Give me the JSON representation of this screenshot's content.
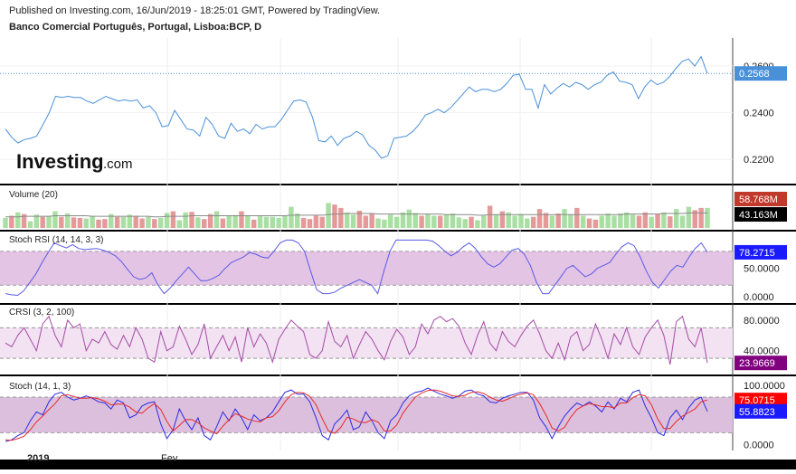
{
  "header": {
    "published": "Published on Investing.com, 16/Jun/2019 - 18:25:01 GMT, Powered by TradingView.",
    "symbol": "Banco Comercial Português, Portugal, Lisboa:BCP, D"
  },
  "watermark": {
    "brand": "Investing",
    "suffix": ".com"
  },
  "x_axis": {
    "labels": [
      "2019",
      "Fev"
    ]
  },
  "colors": {
    "price": "#4a90d9",
    "price_badge": "#4a90d9",
    "vol_up": "#a9dfa3",
    "vol_down": "#e59a9a",
    "vol_ma": "#8a8a8a",
    "vol_badge": "#c0392b",
    "vol_ma_badge": "#000000",
    "rsi_line": "#5a5ae6",
    "rsi_band": "#e4c4e4",
    "rsi_badge": "#1a1aff",
    "crsi_line": "#a64ca6",
    "crsi_band": "#f2e2f2",
    "crsi_badge": "#800080",
    "stoch_k": "#2b2be6",
    "stoch_d": "#e62b2b",
    "stoch_band": "#dcbfdc",
    "stoch_k_badge": "#1a1aff",
    "stoch_d_badge": "#ff0000"
  },
  "chart_data": [
    {
      "type": "line",
      "title": "Banco Comercial Português, Portugal, Lisboa:BCP, D",
      "ylim": [
        0.21,
        0.272
      ],
      "yticks": [
        "0.2200",
        "0.2400",
        "0.2600"
      ],
      "last_label": "0.2568",
      "series": [
        {
          "values": [
            0.233,
            0.2295,
            0.227,
            0.2285,
            0.229,
            0.23,
            0.235,
            0.24,
            0.247,
            0.2465,
            0.247,
            0.2465,
            0.2465,
            0.245,
            0.244,
            0.2455,
            0.247,
            0.246,
            0.245,
            0.2455,
            0.245,
            0.2455,
            0.242,
            0.243,
            0.24,
            0.234,
            0.2345,
            0.241,
            0.237,
            0.233,
            0.2325,
            0.23,
            0.238,
            0.235,
            0.23,
            0.229,
            0.2355,
            0.232,
            0.233,
            0.231,
            0.235,
            0.233,
            0.234,
            0.234,
            0.237,
            0.241,
            0.245,
            0.2455,
            0.2445,
            0.238,
            0.228,
            0.2275,
            0.23,
            0.226,
            0.229,
            0.23,
            0.232,
            0.2305,
            0.226,
            0.224,
            0.2205,
            0.2215,
            0.229,
            0.2295,
            0.23,
            0.232,
            0.235,
            0.239,
            0.24,
            0.2415,
            0.24,
            0.242,
            0.245,
            0.248,
            0.251,
            0.249,
            0.25,
            0.25,
            0.249,
            0.25,
            0.2525,
            0.256,
            0.2565,
            0.25,
            0.25,
            0.242,
            0.252,
            0.248,
            0.2505,
            0.2525,
            0.251,
            0.253,
            0.252,
            0.25,
            0.252,
            0.253,
            0.256,
            0.2575,
            0.2535,
            0.253,
            0.252,
            0.246,
            0.251,
            0.254,
            0.252,
            0.253,
            0.2555,
            0.259,
            0.262,
            0.263,
            0.26,
            0.264,
            0.2568
          ]
        }
      ]
    },
    {
      "type": "bar",
      "title": "Volume (20)",
      "last_label": "58.768M",
      "ma_label": "43.163M",
      "ylim": [
        0,
        70
      ],
      "series": [
        {
          "name": "volume",
          "values": [
            18,
            22,
            28,
            25,
            12,
            24,
            20,
            22,
            30,
            20,
            26,
            19,
            18,
            17,
            22,
            15,
            16,
            25,
            20,
            20,
            24,
            22,
            17,
            20,
            16,
            18,
            27,
            30,
            14,
            28,
            29,
            19,
            16,
            25,
            30,
            17,
            22,
            23,
            30,
            23,
            15,
            21,
            20,
            20,
            18,
            22,
            38,
            26,
            18,
            16,
            22,
            20,
            45,
            42,
            36,
            28,
            24,
            31,
            22,
            26,
            17,
            15,
            24,
            20,
            28,
            33,
            27,
            22,
            25,
            22,
            22,
            24,
            26,
            19,
            16,
            20,
            14,
            22,
            40,
            24,
            30,
            28,
            22,
            25,
            17,
            20,
            34,
            27,
            22,
            26,
            34,
            24,
            36,
            22,
            17,
            15,
            22,
            26,
            22,
            26,
            28,
            24,
            22,
            28,
            20,
            25,
            28,
            21,
            34,
            22,
            38,
            32,
            36,
            36
          ]
        },
        {
          "name": "volume_ma",
          "values": [
            20,
            20,
            20,
            21,
            21,
            21,
            21,
            21,
            22,
            22,
            22,
            22,
            22,
            22,
            21,
            21,
            21,
            21,
            21,
            21,
            21,
            21,
            21,
            21,
            20,
            20,
            21,
            21,
            21,
            21,
            22,
            22,
            22,
            22,
            22,
            22,
            22,
            22,
            22,
            22,
            22,
            22,
            22,
            22,
            22,
            22,
            23,
            23,
            23,
            23,
            23,
            23,
            24,
            25,
            25,
            26,
            26,
            26,
            26,
            26,
            25,
            25,
            25,
            25,
            25,
            25,
            25,
            25,
            25,
            25,
            25,
            24,
            24,
            24,
            24,
            24,
            23,
            23,
            24,
            24,
            24,
            24,
            24,
            24,
            24,
            24,
            24,
            24,
            24,
            24,
            24,
            24,
            24,
            24,
            24,
            24,
            24,
            24,
            24,
            24,
            25,
            25,
            25,
            25,
            25,
            25,
            26,
            26,
            26,
            26,
            27,
            27,
            27,
            27
          ]
        }
      ],
      "up_down": "1,0,1,0,1,1,0,1,1,0,1,0,0,1,1,0,0,1,0,1,1,0,0,1,0,1,1,0,1,1,0,1,0,0,1,0,1,1,0,1,0,1,1,1,1,1,1,1,0,0,0,0,1,0,0,1,1,0,0,0,1,1,1,1,1,1,1,0,1,1,0,1,1,1,1,0,1,1,0,1,0,1,1,1,1,0,0,0,1,0,1,1,0,1,0,0,1,1,1,1,1,1,0,0,1,0,1,0,1,1,1,0,0,1"
    },
    {
      "type": "line",
      "title": "Stoch RSI (14, 14, 3, 3)",
      "ylim": [
        -10,
        115
      ],
      "yticks": [
        "0.0000",
        "50.0000"
      ],
      "bands": [
        20,
        80
      ],
      "last_label": "78.2715",
      "series": [
        {
          "values": [
            5,
            3,
            2,
            10,
            25,
            40,
            60,
            78,
            95,
            90,
            86,
            92,
            85,
            83,
            84,
            85,
            82,
            78,
            72,
            62,
            48,
            35,
            30,
            33,
            42,
            20,
            5,
            15,
            28,
            40,
            52,
            40,
            28,
            28,
            32,
            38,
            50,
            60,
            65,
            70,
            78,
            75,
            70,
            68,
            80,
            95,
            100,
            100,
            95,
            80,
            45,
            12,
            5,
            5,
            8,
            15,
            20,
            25,
            30,
            25,
            20,
            5,
            45,
            80,
            100,
            100,
            100,
            100,
            100,
            100,
            98,
            90,
            80,
            72,
            78,
            88,
            95,
            85,
            70,
            58,
            52,
            58,
            70,
            82,
            85,
            75,
            55,
            25,
            5,
            5,
            20,
            35,
            50,
            55,
            45,
            35,
            40,
            50,
            55,
            60,
            75,
            88,
            95,
            90,
            70,
            45,
            25,
            15,
            30,
            45,
            55,
            52,
            70,
            85,
            95,
            78.27
          ]
        }
      ]
    },
    {
      "type": "line",
      "title": "CRSI (3, 2, 100)",
      "ylim": [
        10,
        100
      ],
      "yticks": [
        "40.0000",
        "80.0000"
      ],
      "bands": [
        30,
        70
      ],
      "last_label": "23.9669",
      "series": [
        {
          "values": [
            50,
            45,
            60,
            70,
            55,
            40,
            75,
            85,
            60,
            45,
            80,
            70,
            75,
            40,
            55,
            50,
            65,
            48,
            42,
            60,
            45,
            70,
            55,
            30,
            25,
            65,
            40,
            45,
            72,
            55,
            35,
            48,
            75,
            30,
            45,
            60,
            40,
            58,
            25,
            70,
            45,
            62,
            50,
            25,
            55,
            68,
            80,
            72,
            65,
            35,
            30,
            40,
            78,
            52,
            45,
            60,
            30,
            48,
            65,
            55,
            40,
            28,
            52,
            68,
            58,
            35,
            45,
            75,
            62,
            80,
            85,
            78,
            82,
            72,
            50,
            35,
            60,
            78,
            50,
            40,
            65,
            52,
            45,
            60,
            72,
            80,
            62,
            40,
            30,
            50,
            28,
            58,
            65,
            40,
            48,
            75,
            55,
            30,
            62,
            48,
            70,
            45,
            35,
            58,
            70,
            80,
            60,
            22,
            78,
            85,
            55,
            45,
            70,
            23.97
          ]
        }
      ]
    },
    {
      "type": "line",
      "title": "Stoch (14, 1, 3)",
      "ylim": [
        -10,
        115
      ],
      "yticks": [
        "0.0000",
        "100.0000"
      ],
      "bands": [
        20,
        80
      ],
      "last_label_d": "75.0715",
      "last_label_k": "55.8823",
      "series": [
        {
          "name": "k",
          "values": [
            5,
            8,
            15,
            20,
            40,
            55,
            50,
            72,
            85,
            88,
            80,
            75,
            78,
            82,
            78,
            72,
            70,
            60,
            75,
            70,
            45,
            50,
            65,
            70,
            72,
            35,
            10,
            25,
            60,
            40,
            25,
            45,
            15,
            8,
            30,
            55,
            40,
            60,
            45,
            25,
            50,
            40,
            45,
            55,
            72,
            88,
            92,
            85,
            85,
            72,
            45,
            15,
            8,
            35,
            45,
            58,
            25,
            30,
            55,
            40,
            20,
            10,
            40,
            50,
            70,
            82,
            88,
            90,
            95,
            90,
            85,
            82,
            78,
            82,
            90,
            92,
            85,
            82,
            72,
            70,
            78,
            82,
            85,
            88,
            88,
            75,
            45,
            30,
            10,
            30,
            48,
            60,
            70,
            65,
            72,
            65,
            55,
            72,
            60,
            78,
            72,
            88,
            92,
            65,
            45,
            20,
            15,
            45,
            58,
            42,
            62,
            75,
            80,
            55.88
          ]
        },
        {
          "name": "d",
          "values": [
            8,
            7,
            10,
            14,
            25,
            38,
            48,
            59,
            69,
            82,
            84,
            81,
            78,
            78,
            79,
            77,
            73,
            67,
            68,
            68,
            63,
            55,
            53,
            62,
            69,
            59,
            39,
            23,
            32,
            42,
            42,
            37,
            28,
            23,
            18,
            31,
            42,
            52,
            48,
            43,
            40,
            38,
            45,
            47,
            57,
            72,
            84,
            88,
            87,
            81,
            67,
            44,
            23,
            19,
            29,
            46,
            43,
            38,
            37,
            42,
            38,
            23,
            23,
            33,
            53,
            67,
            80,
            87,
            91,
            92,
            90,
            86,
            82,
            81,
            83,
            88,
            89,
            86,
            80,
            75,
            73,
            77,
            82,
            85,
            87,
            84,
            69,
            50,
            28,
            23,
            29,
            46,
            59,
            65,
            69,
            67,
            64,
            64,
            62,
            70,
            70,
            79,
            84,
            82,
            67,
            43,
            27,
            27,
            39,
            48,
            54,
            60,
            72,
            75.07
          ]
        }
      ]
    }
  ]
}
